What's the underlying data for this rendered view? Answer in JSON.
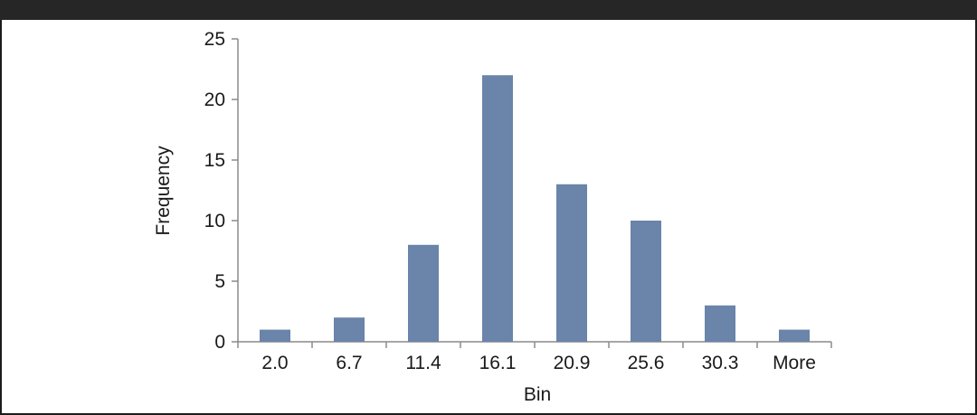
{
  "chart_data": {
    "type": "bar",
    "categories": [
      "2.0",
      "6.7",
      "11.4",
      "16.1",
      "20.9",
      "25.6",
      "30.3",
      "More"
    ],
    "values": [
      1,
      2,
      8,
      22,
      13,
      10,
      3,
      1
    ],
    "title": "",
    "xlabel": "Bin",
    "ylabel": "Frequency",
    "ylim": [
      0,
      25
    ],
    "yticks": [
      "0",
      "5",
      "10",
      "15",
      "20",
      "25"
    ],
    "bar_color": "#6a84aa",
    "grid": false,
    "legend": "none"
  }
}
